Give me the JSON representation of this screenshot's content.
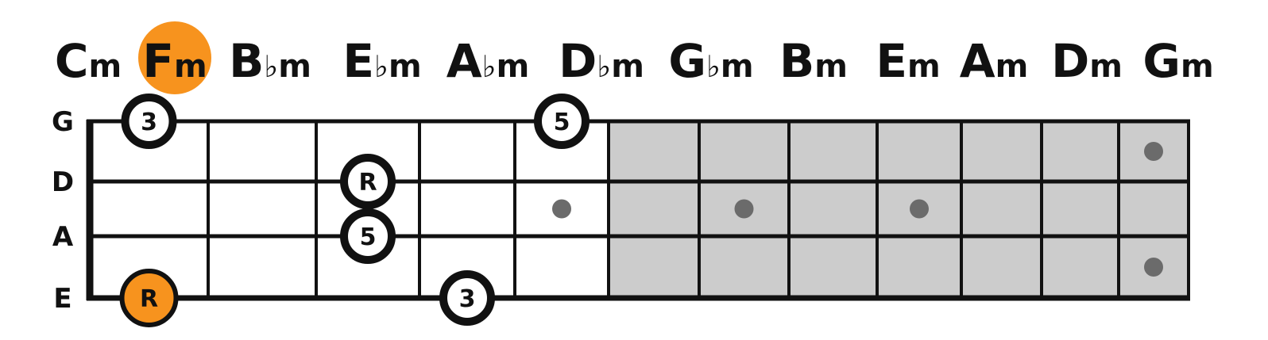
{
  "chords": [
    {
      "letter": "C",
      "accidental": "",
      "quality": "m",
      "highlighted": false
    },
    {
      "letter": "F",
      "accidental": "",
      "quality": "m",
      "highlighted": true
    },
    {
      "letter": "B",
      "accidental": "♭",
      "quality": "m",
      "highlighted": false
    },
    {
      "letter": "E",
      "accidental": "♭",
      "quality": "m",
      "highlighted": false
    },
    {
      "letter": "A",
      "accidental": "♭",
      "quality": "m",
      "highlighted": false
    },
    {
      "letter": "D",
      "accidental": "♭",
      "quality": "m",
      "highlighted": false
    },
    {
      "letter": "G",
      "accidental": "♭",
      "quality": "m",
      "highlighted": false
    },
    {
      "letter": "B",
      "accidental": "",
      "quality": "m",
      "highlighted": false
    },
    {
      "letter": "E",
      "accidental": "",
      "quality": "m",
      "highlighted": false
    },
    {
      "letter": "A",
      "accidental": "",
      "quality": "m",
      "highlighted": false
    },
    {
      "letter": "D",
      "accidental": "",
      "quality": "m",
      "highlighted": false
    },
    {
      "letter": "G",
      "accidental": "",
      "quality": "m",
      "highlighted": false
    }
  ],
  "strings": [
    "G",
    "D",
    "A",
    "E"
  ],
  "fret_count": 12,
  "shaded_from_fret": 6,
  "position_dots": [
    {
      "fret": 5,
      "between": "D-A"
    },
    {
      "fret": 7,
      "between": "D-A"
    },
    {
      "fret": 9,
      "between": "D-A"
    },
    {
      "fret": 12,
      "between": "G-D"
    },
    {
      "fret": 12,
      "between": "A-E"
    }
  ],
  "notes": [
    {
      "string": "G",
      "fret": 1,
      "label": "3",
      "root": false
    },
    {
      "string": "G",
      "fret": 5,
      "label": "5",
      "root": false
    },
    {
      "string": "D",
      "fret": 3,
      "label": "R",
      "root": false
    },
    {
      "string": "A",
      "fret": 3,
      "label": "5",
      "root": false
    },
    {
      "string": "E",
      "fret": 1,
      "label": "R",
      "root": true
    },
    {
      "string": "E",
      "fret": 4,
      "label": "3",
      "root": false
    }
  ],
  "colors": {
    "accent": "#F7931E",
    "line": "#111111",
    "shade": "#CCCCCC",
    "dot": "#6B6B6B",
    "text": "#111111"
  }
}
